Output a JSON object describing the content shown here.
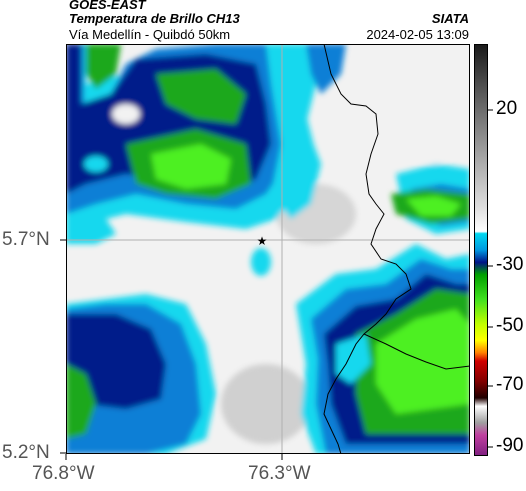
{
  "header": {
    "satellite": "GOES-EAST",
    "product": "Temperatura de Brillo CH13",
    "route": "Vía Medellín - Quibdó 50km",
    "org": "SIATA",
    "datetime": "2024-02-05 13:09"
  },
  "axes": {
    "lat_ticks": [
      "5.7°N",
      "5.2°N"
    ],
    "lon_ticks": [
      "76.8°W",
      "76.3°W"
    ]
  },
  "colorbar": {
    "ticks": [
      "20",
      "-30",
      "-50",
      "-70",
      "-90"
    ],
    "stops": [
      "#1a1a1a",
      "#5a5a5a",
      "#9a9a9a",
      "#d8d8d8",
      "#ffffff",
      "#00d8f0",
      "#0098e0",
      "#0040c0",
      "#001488",
      "#00a000",
      "#40e020",
      "#c0ff00",
      "#ffff00",
      "#ff8000",
      "#d00000",
      "#800000",
      "#200000",
      "#a0a0a0",
      "#c040a0",
      "#802080"
    ]
  },
  "palette": {
    "white_cloud": "#f4f4f4",
    "light_grey": "#dcdcdc",
    "cyan": "#12d8ee",
    "blue": "#0a7fd6",
    "dark_blue": "#001a8a",
    "green": "#1ea81e",
    "bright_green": "#4ef020",
    "coast_line": "#000000",
    "grid_line": "#b0b0b0"
  }
}
